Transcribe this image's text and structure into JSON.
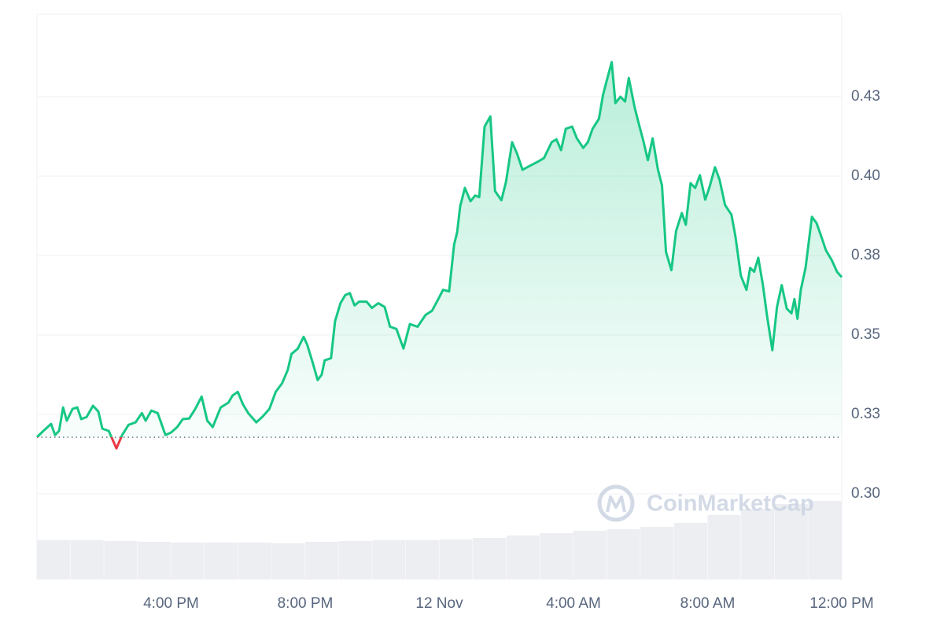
{
  "chart_data": {
    "type": "line",
    "x": [
      0,
      0.19,
      0.42,
      0.54,
      0.66,
      0.78,
      0.89,
      1.06,
      1.2,
      1.32,
      1.48,
      1.67,
      1.83,
      1.95,
      2.14,
      2.37,
      2.54,
      2.73,
      2.94,
      3.13,
      3.24,
      3.41,
      3.6,
      3.83,
      4,
      4.18,
      4.35,
      4.54,
      4.72,
      4.91,
      5.08,
      5.24,
      5.48,
      5.71,
      5.83,
      5.99,
      6.14,
      6.3,
      6.54,
      6.72,
      6.93,
      7.12,
      7.31,
      7.48,
      7.59,
      7.78,
      7.95,
      8.06,
      8.23,
      8.37,
      8.49,
      8.58,
      8.77,
      8.89,
      9.05,
      9.19,
      9.33,
      9.47,
      9.61,
      9.83,
      9.99,
      10.18,
      10.37,
      10.53,
      10.72,
      10.93,
      11.12,
      11.35,
      11.59,
      11.78,
      11.97,
      12.11,
      12.29,
      12.44,
      12.53,
      12.62,
      12.76,
      12.93,
      13.07,
      13.19,
      13.35,
      13.52,
      13.66,
      13.85,
      13.99,
      14.17,
      14.32,
      14.48,
      14.69,
      14.93,
      15.12,
      15.35,
      15.49,
      15.63,
      15.77,
      15.96,
      16.1,
      16.29,
      16.43,
      16.57,
      16.76,
      16.88,
      17,
      17.14,
      17.25,
      17.4,
      17.54,
      17.65,
      17.82,
      17.94,
      18.08,
      18.22,
      18.36,
      18.52,
      18.64,
      18.76,
      18.92,
      19.06,
      19.23,
      19.35,
      19.49,
      19.63,
      19.77,
      19.93,
      20.05,
      20.22,
      20.36,
      20.52,
      20.71,
      20.83,
      20.99,
      21.16,
      21.27,
      21.39,
      21.51,
      21.65,
      21.77,
      21.93,
      22.07,
      22.21,
      22.36,
      22.5,
      22.59,
      22.68,
      22.78,
      22.92,
      23.11,
      23.25,
      23.39,
      23.53,
      23.7,
      23.86,
      24
    ],
    "values": [
      0.3178,
      0.3198,
      0.322,
      0.3185,
      0.3198,
      0.3272,
      0.323,
      0.3267,
      0.3272,
      0.3235,
      0.3242,
      0.3277,
      0.3259,
      0.3205,
      0.3198,
      0.3143,
      0.3185,
      0.3217,
      0.3225,
      0.3254,
      0.323,
      0.3262,
      0.3254,
      0.3185,
      0.3193,
      0.321,
      0.3235,
      0.3237,
      0.3267,
      0.3306,
      0.323,
      0.321,
      0.3272,
      0.3287,
      0.3309,
      0.3321,
      0.3282,
      0.3254,
      0.3225,
      0.3242,
      0.3267,
      0.3321,
      0.3348,
      0.339,
      0.344,
      0.3457,
      0.3494,
      0.3469,
      0.341,
      0.3358,
      0.3375,
      0.342,
      0.3427,
      0.3543,
      0.36,
      0.3625,
      0.3632,
      0.3593,
      0.3605,
      0.3605,
      0.3585,
      0.36,
      0.3588,
      0.3526,
      0.3519,
      0.3457,
      0.3534,
      0.3526,
      0.3563,
      0.3576,
      0.3613,
      0.3642,
      0.3637,
      0.3785,
      0.3823,
      0.3904,
      0.3963,
      0.3921,
      0.3939,
      0.3934,
      0.4156,
      0.4188,
      0.3953,
      0.3924,
      0.3983,
      0.4107,
      0.407,
      0.402,
      0.4032,
      0.4045,
      0.4057,
      0.4107,
      0.4116,
      0.4082,
      0.4149,
      0.4156,
      0.4119,
      0.4089,
      0.4107,
      0.4149,
      0.4181,
      0.4255,
      0.4304,
      0.4359,
      0.423,
      0.425,
      0.4235,
      0.4309,
      0.4218,
      0.4168,
      0.4112,
      0.405,
      0.4119,
      0.402,
      0.3971,
      0.3761,
      0.3704,
      0.3827,
      0.3884,
      0.3847,
      0.3978,
      0.3963,
      0.4003,
      0.3926,
      0.3963,
      0.4028,
      0.3988,
      0.3909,
      0.3879,
      0.381,
      0.3687,
      0.3642,
      0.3711,
      0.3699,
      0.3743,
      0.3657,
      0.3563,
      0.3452,
      0.3588,
      0.3657,
      0.3583,
      0.3568,
      0.3613,
      0.3551,
      0.3642,
      0.3711,
      0.3872,
      0.3852,
      0.381,
      0.3766,
      0.3736,
      0.3699,
      0.3682
    ],
    "color": "#16c784",
    "below_color": "#ea3943",
    "baseline": 0.3178,
    "xlim": [
      0,
      24
    ],
    "ylim": [
      0.273,
      0.451
    ],
    "xticks": [
      {
        "value": 4,
        "label": "4:00 PM"
      },
      {
        "value": 8,
        "label": "8:00 PM"
      },
      {
        "value": 12,
        "label": "12 Nov"
      },
      {
        "value": 16,
        "label": "4:00 AM"
      },
      {
        "value": 20,
        "label": "8:00 AM"
      },
      {
        "value": 24,
        "label": "12:00 PM"
      }
    ],
    "yticks": [
      {
        "value": 0.3,
        "label": "0.30"
      },
      {
        "value": 0.325,
        "label": "0.33"
      },
      {
        "value": 0.35,
        "label": "0.35"
      },
      {
        "value": 0.375,
        "label": "0.38"
      },
      {
        "value": 0.4,
        "label": "0.40"
      },
      {
        "value": 0.425,
        "label": "0.43"
      }
    ],
    "grid": true,
    "watermark": "CoinMarketCap",
    "volume": {
      "x": [
        0,
        1,
        2,
        3,
        4,
        5,
        6,
        7,
        8,
        9,
        10,
        11,
        12,
        13,
        14,
        15,
        16,
        17,
        18,
        19,
        20,
        21,
        22,
        23
      ],
      "values": [
        50,
        50,
        49,
        48,
        47,
        47,
        47,
        46,
        48,
        49,
        50,
        50,
        51,
        53,
        56,
        59,
        62,
        64,
        67,
        72,
        82,
        90,
        96,
        100
      ],
      "ylim": [
        0,
        100
      ],
      "color": "#eceef2"
    }
  }
}
